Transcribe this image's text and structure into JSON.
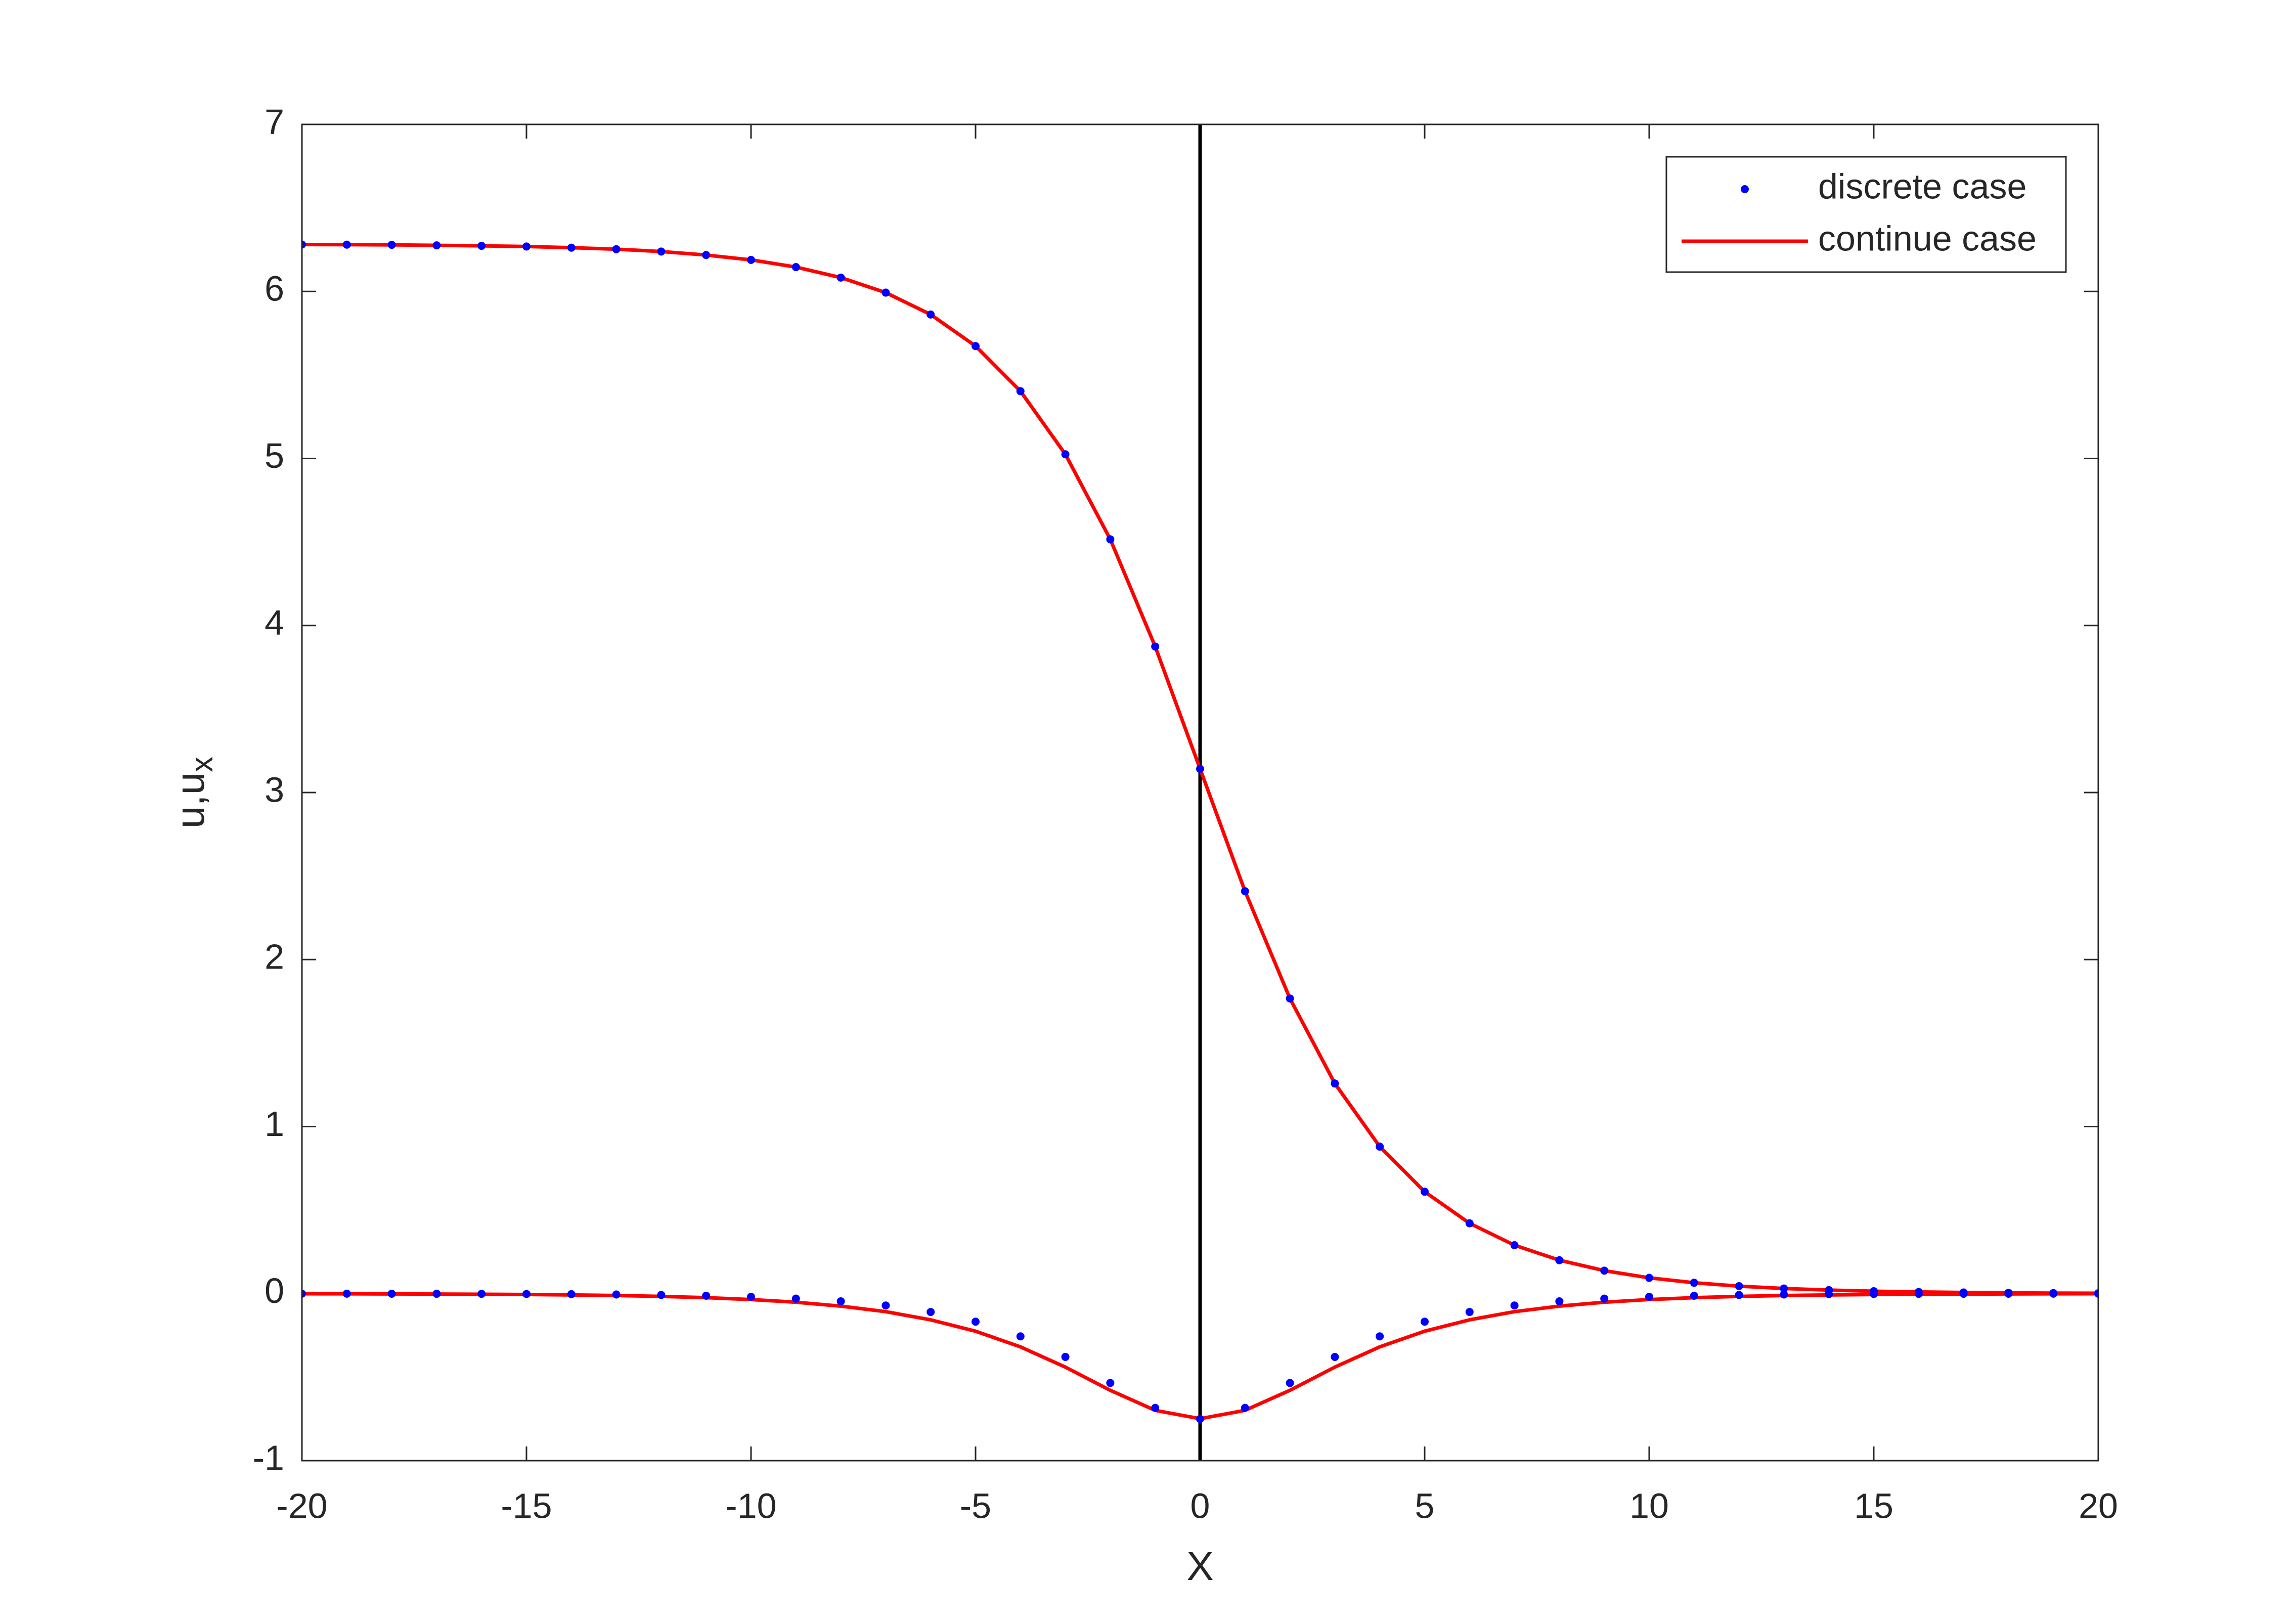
{
  "chart_data": {
    "type": "line",
    "xlabel": "X",
    "ylabel": "u,u",
    "ylabel_sub": "x",
    "x": [
      -20,
      -19,
      -18,
      -17,
      -16,
      -15,
      -14,
      -13,
      -12,
      -11,
      -10,
      -9,
      -8,
      -7,
      -6,
      -5,
      -4,
      -3,
      -2,
      -1,
      0,
      1,
      2,
      3,
      4,
      5,
      6,
      7,
      8,
      9,
      10,
      11,
      12,
      13,
      14,
      15,
      16,
      17,
      18,
      19,
      20
    ],
    "series": [
      {
        "name": "discrete case",
        "color": "#0000ff",
        "style": "dots",
        "curves": [
          [
            6.281,
            6.28,
            6.279,
            6.276,
            6.273,
            6.269,
            6.262,
            6.253,
            6.239,
            6.218,
            6.189,
            6.146,
            6.083,
            5.993,
            5.862,
            5.673,
            5.403,
            5.025,
            4.516,
            3.874,
            3.1416,
            2.409,
            1.767,
            1.258,
            0.88,
            0.61,
            0.421,
            0.29,
            0.2,
            0.1375,
            0.0945,
            0.065,
            0.0447,
            0.0307,
            0.0211,
            0.0145,
            0.01,
            0.0069,
            0.0047,
            0.0032,
            0.0022
          ],
          [
            -0.0003,
            -0.0004,
            -0.0006,
            -0.0009,
            -0.0014,
            -0.0022,
            -0.0034,
            -0.0053,
            -0.0081,
            -0.0126,
            -0.019,
            -0.03,
            -0.046,
            -0.071,
            -0.11,
            -0.168,
            -0.256,
            -0.379,
            -0.535,
            -0.684,
            -0.75,
            -0.684,
            -0.535,
            -0.379,
            -0.256,
            -0.168,
            -0.11,
            -0.071,
            -0.046,
            -0.03,
            -0.019,
            -0.0126,
            -0.0081,
            -0.0053,
            -0.0034,
            -0.0022,
            -0.0014,
            -0.0009,
            -0.0006,
            -0.0004,
            -0.0003
          ]
        ]
      },
      {
        "name": "continue case",
        "color": "#ff0000",
        "style": "line",
        "curves": [
          [
            6.281,
            6.28,
            6.279,
            6.276,
            6.273,
            6.269,
            6.262,
            6.253,
            6.239,
            6.218,
            6.189,
            6.146,
            6.083,
            5.993,
            5.862,
            5.673,
            5.403,
            5.025,
            4.516,
            3.874,
            3.1416,
            2.409,
            1.767,
            1.258,
            0.88,
            0.61,
            0.421,
            0.29,
            0.2,
            0.1375,
            0.0945,
            0.065,
            0.0447,
            0.0307,
            0.0211,
            0.0145,
            0.01,
            0.0069,
            0.0047,
            0.0032,
            0.0022
          ],
          [
            -0.0008,
            -0.0012,
            -0.0018,
            -0.0026,
            -0.0037,
            -0.0054,
            -0.0079,
            -0.0115,
            -0.0167,
            -0.0243,
            -0.0354,
            -0.0515,
            -0.075,
            -0.108,
            -0.157,
            -0.225,
            -0.319,
            -0.44,
            -0.579,
            -0.699,
            -0.749,
            -0.699,
            -0.579,
            -0.44,
            -0.319,
            -0.225,
            -0.157,
            -0.108,
            -0.075,
            -0.0515,
            -0.0354,
            -0.0243,
            -0.0167,
            -0.0115,
            -0.0079,
            -0.0054,
            -0.0037,
            -0.0026,
            -0.0018,
            -0.0012,
            -0.0008
          ]
        ]
      }
    ],
    "vline": {
      "x": 0,
      "color": "#000000"
    },
    "xlim": [
      -20,
      20
    ],
    "xticks": [
      -20,
      -15,
      -10,
      -5,
      0,
      5,
      10,
      15,
      20
    ],
    "ylim": [
      -1,
      7
    ],
    "yticks": [
      -1,
      0,
      1,
      2,
      3,
      4,
      5,
      6,
      7
    ],
    "grid": false,
    "legend": "northeast"
  }
}
